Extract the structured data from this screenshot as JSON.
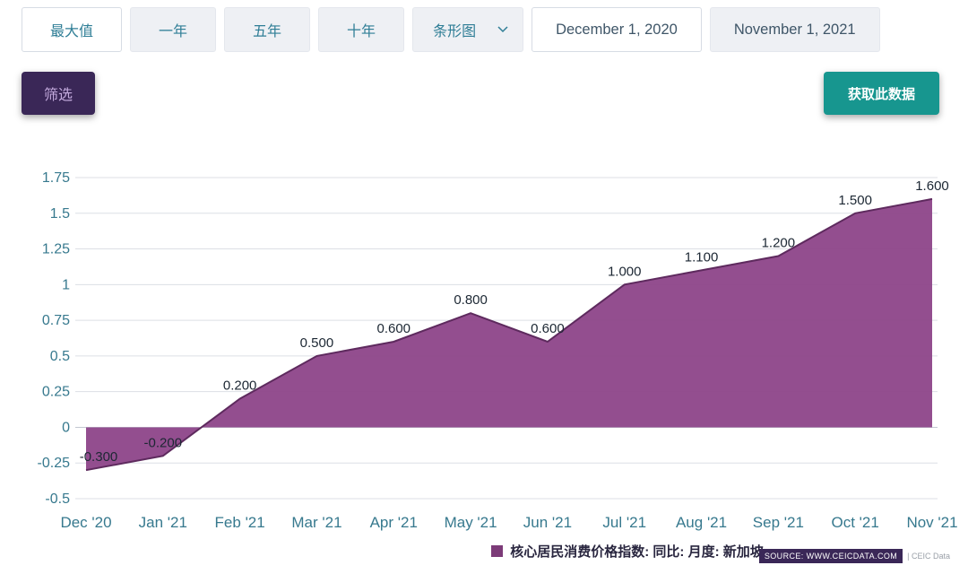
{
  "toolbar": {
    "range_buttons": [
      {
        "label": "最大值",
        "active": true
      },
      {
        "label": "一年",
        "active": false
      },
      {
        "label": "五年",
        "active": false
      },
      {
        "label": "十年",
        "active": false
      }
    ],
    "chart_type": {
      "value": "条形图"
    },
    "start_date": "December 1, 2020",
    "end_date": "November 1, 2021",
    "filter_label": "筛选",
    "get_data_label": "获取此数据"
  },
  "legend": {
    "label": "核心居民消费价格指数: 同比: 月度: 新加坡"
  },
  "source": {
    "badge": "SOURCE: WWW.CEICDATA.COM",
    "suffix": "| CEIC Data"
  },
  "chart_data": {
    "type": "area",
    "title": "",
    "xlabel": "",
    "ylabel": "",
    "categories": [
      "Dec '20",
      "Jan '21",
      "Feb '21",
      "Mar '21",
      "Apr '21",
      "May '21",
      "Jun '21",
      "Jul '21",
      "Aug '21",
      "Sep '21",
      "Oct '21",
      "Nov '21"
    ],
    "values": [
      -0.3,
      -0.2,
      0.2,
      0.5,
      0.6,
      0.8,
      0.6,
      1.0,
      1.1,
      1.2,
      1.5,
      1.6
    ],
    "value_labels": [
      "-0.300",
      "-0.200",
      "0.200",
      "0.500",
      "0.600",
      "0.800",
      "0.600",
      "1.000",
      "1.100",
      "1.200",
      "1.500",
      "1.600"
    ],
    "series_name": "核心居民消费价格指数: 同比: 月度: 新加坡",
    "ylim": [
      -0.5,
      1.75
    ],
    "yticks": [
      -0.5,
      -0.25,
      0,
      0.25,
      0.5,
      0.75,
      1,
      1.25,
      1.5,
      1.75
    ],
    "grid": true,
    "baseline": 0,
    "legend_position": "bottom",
    "colors": {
      "fill": "#8d4589",
      "line": "#5e2a5e",
      "axis_text": "#37798e",
      "label_text": "#1c2733",
      "grid_line": "#dcdfe5",
      "zero_line": "#c2c7d0"
    }
  }
}
